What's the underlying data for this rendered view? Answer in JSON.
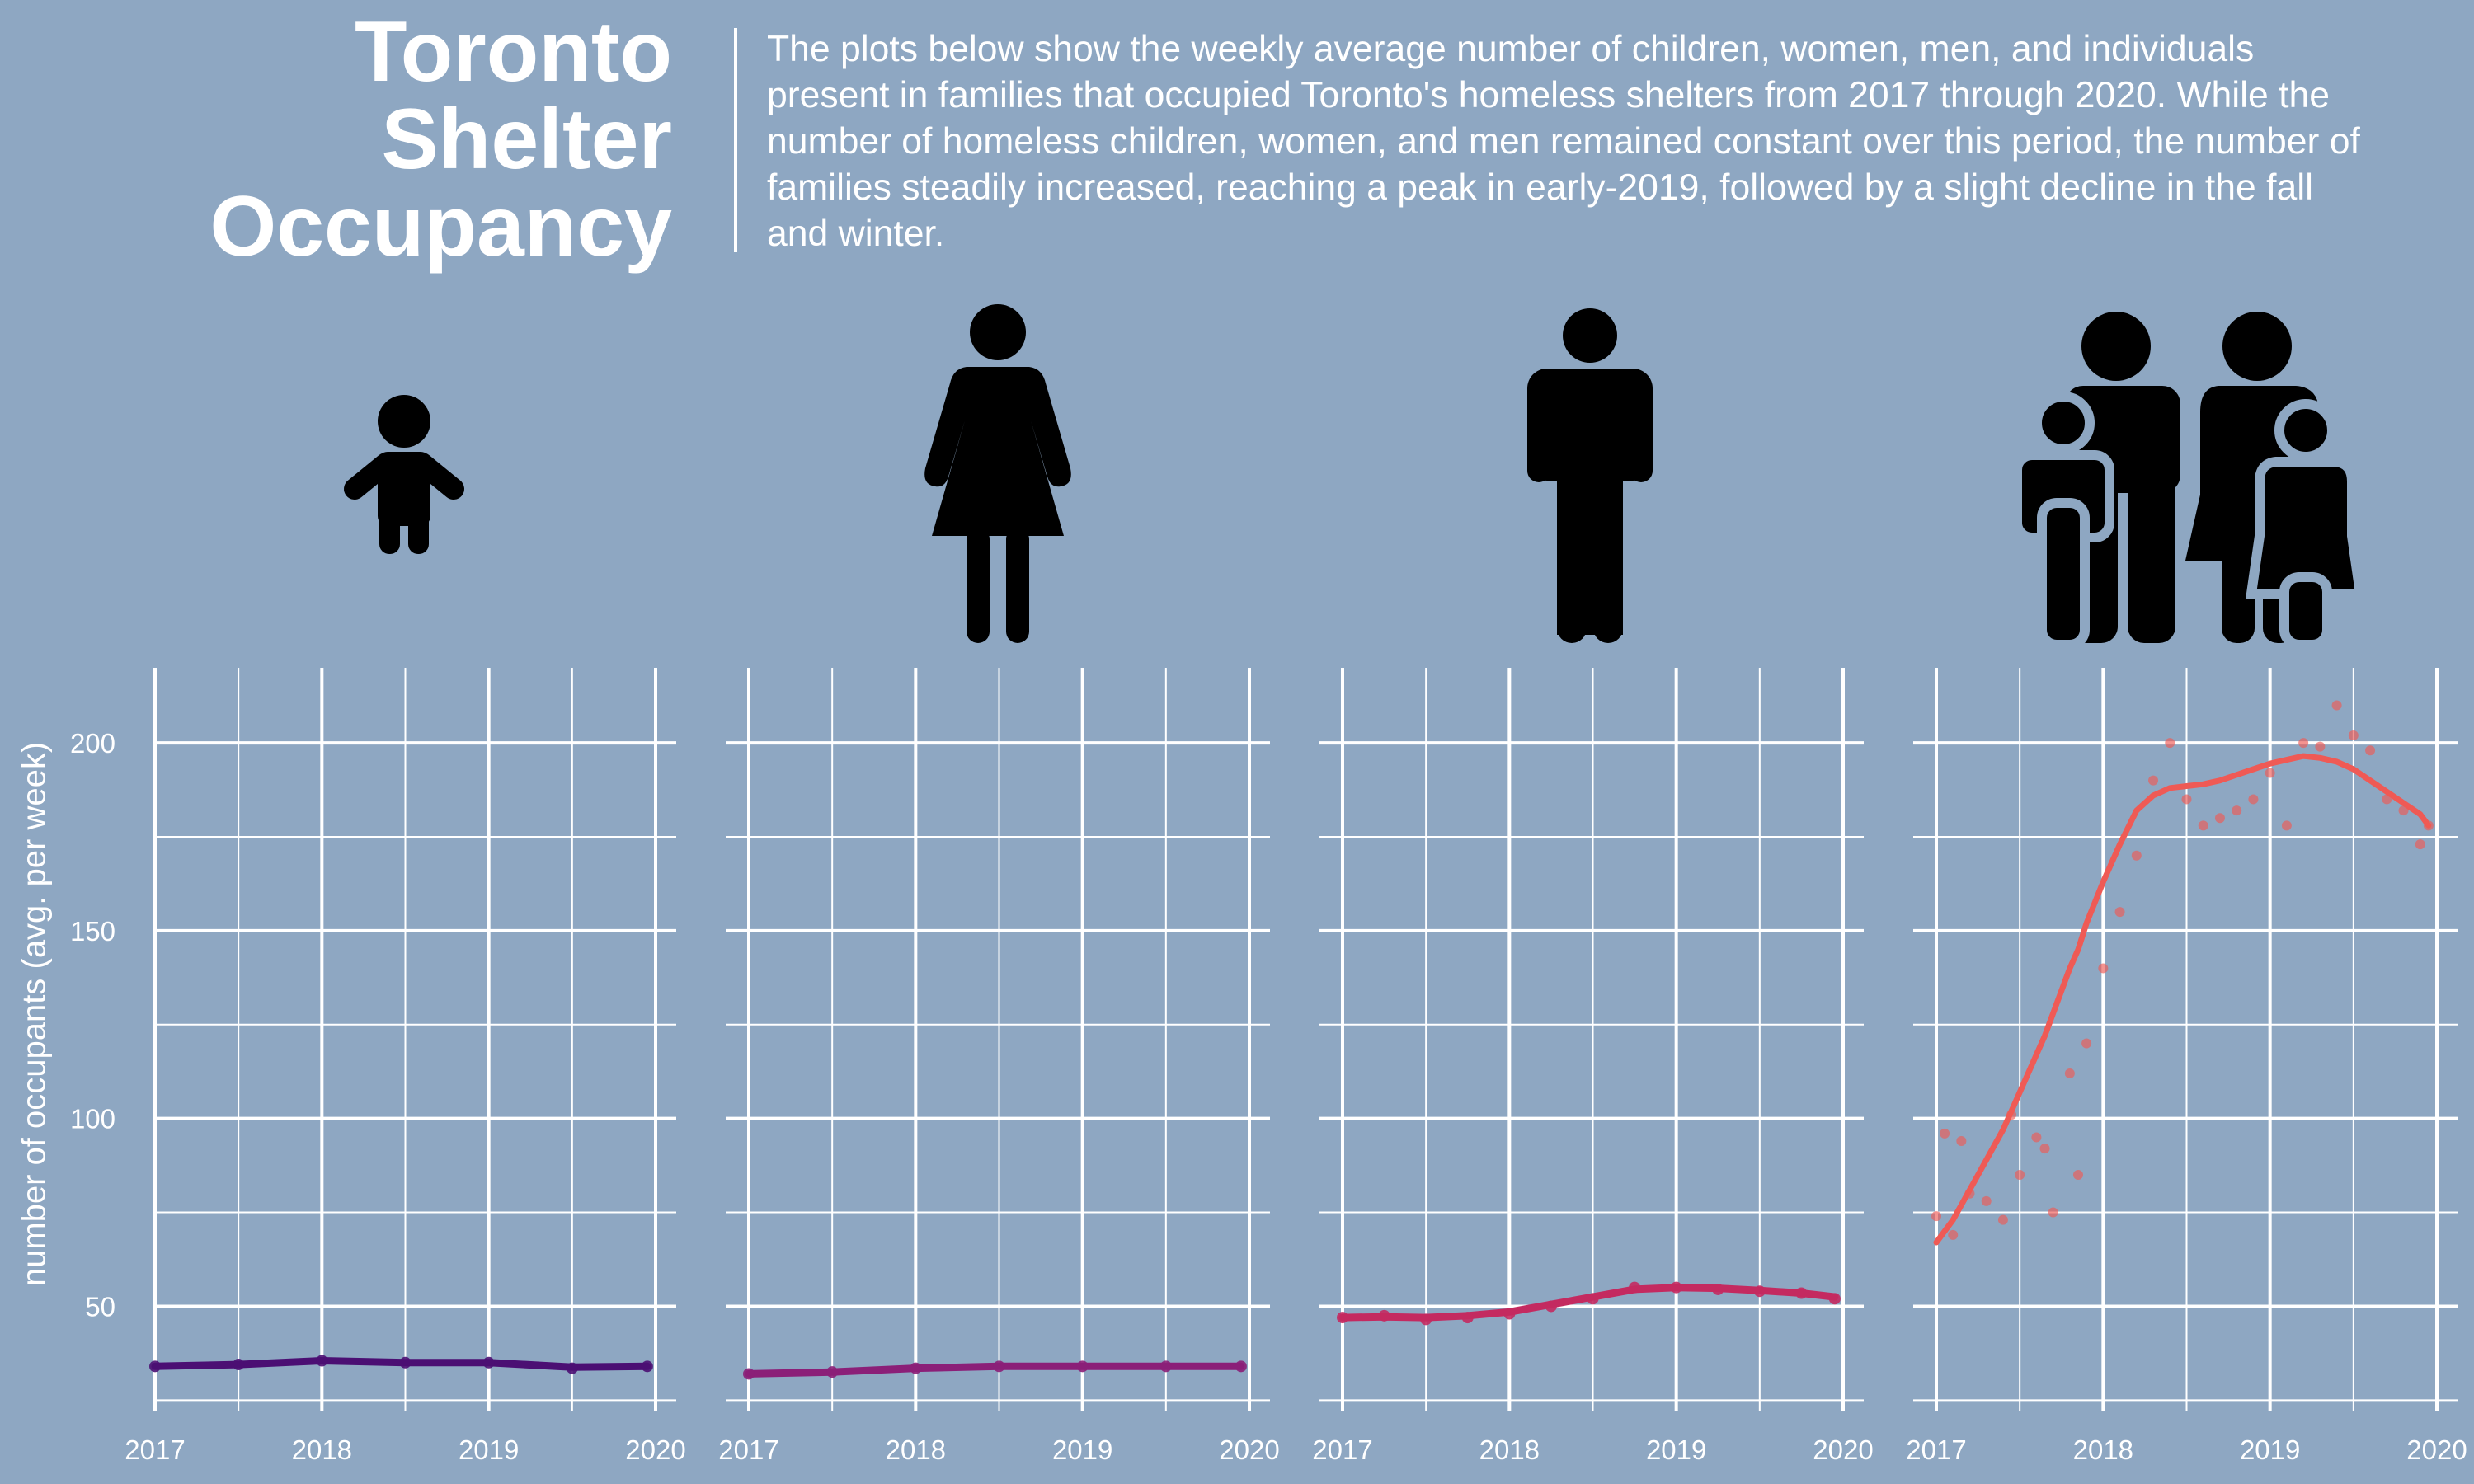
{
  "title_lines": [
    "Toronto",
    "Shelter",
    "Occupancy"
  ],
  "subtitle": "The plots below show the weekly average number of children, women, men, and individuals present in families that occupied Toronto's homeless shelters from 2017 through 2020. While the number of homeless children, women, and men remained constant over this period, the number of families steadily increased, reaching a peak in early-2019, followed by a slight decline in the fall and winter.",
  "icons": [
    "child-icon",
    "woman-icon",
    "man-icon",
    "family-icon"
  ],
  "colors": {
    "background": "#8EA7C2",
    "grid": "#ffffff",
    "children": "#4B0F73",
    "women": "#8B1F78",
    "men": "#C42A60",
    "families": "#EF5A55"
  },
  "chart_data": [
    {
      "type": "scatter",
      "group": "children",
      "x": [
        2017.0,
        2017.5,
        2018.0,
        2018.5,
        2019.0,
        2019.5,
        2019.95
      ],
      "y": [
        34,
        34.5,
        35.5,
        35,
        35,
        33.5,
        34
      ],
      "smooth": [
        34,
        34.5,
        35.5,
        35,
        35,
        33.8,
        34
      ],
      "xlim": [
        2017,
        2020
      ],
      "ylim": [
        22,
        220
      ],
      "xticks": [
        "2017",
        "2018",
        "2019",
        "2020"
      ],
      "yticks": [
        "50",
        "100",
        "150",
        "200"
      ],
      "ylabel": "number of occupants (avg. per week)",
      "grid": true
    },
    {
      "type": "scatter",
      "group": "women",
      "x": [
        2017.0,
        2017.5,
        2018.0,
        2018.5,
        2019.0,
        2019.5,
        2019.95
      ],
      "y": [
        32,
        32.5,
        33.5,
        34,
        34,
        34,
        34
      ],
      "smooth": [
        32,
        32.5,
        33.5,
        34,
        34,
        34,
        34
      ],
      "xlim": [
        2017,
        2020
      ],
      "ylim": [
        22,
        220
      ],
      "xticks": [
        "2017",
        "2018",
        "2019",
        "2020"
      ],
      "grid": true
    },
    {
      "type": "scatter",
      "group": "men",
      "x": [
        2017.0,
        2017.25,
        2017.5,
        2017.75,
        2018.0,
        2018.25,
        2018.5,
        2018.75,
        2019.0,
        2019.25,
        2019.5,
        2019.75,
        2019.95
      ],
      "y": [
        47,
        47.5,
        46.5,
        47,
        48,
        50,
        52,
        55,
        55,
        54.5,
        54,
        53.5,
        52
      ],
      "smooth": [
        47,
        47.2,
        47,
        47.5,
        48.5,
        50.5,
        52.5,
        54.5,
        55,
        54.8,
        54.2,
        53.5,
        52.5
      ],
      "xlim": [
        2017,
        2020
      ],
      "ylim": [
        22,
        220
      ],
      "xticks": [
        "2017",
        "2018",
        "2019",
        "2020"
      ],
      "grid": true
    },
    {
      "type": "scatter",
      "group": "families",
      "x": [
        2017.0,
        2017.05,
        2017.1,
        2017.15,
        2017.2,
        2017.3,
        2017.4,
        2017.45,
        2017.5,
        2017.6,
        2017.65,
        2017.7,
        2017.8,
        2017.85,
        2017.9,
        2018.0,
        2018.1,
        2018.2,
        2018.3,
        2018.4,
        2018.5,
        2018.6,
        2018.7,
        2018.8,
        2018.9,
        2019.0,
        2019.1,
        2019.2,
        2019.3,
        2019.4,
        2019.5,
        2019.6,
        2019.7,
        2019.8,
        2019.9,
        2019.95
      ],
      "y": [
        74,
        96,
        69,
        94,
        80,
        78,
        73,
        101,
        85,
        95,
        92,
        75,
        112,
        85,
        120,
        140,
        155,
        170,
        190,
        200,
        185,
        178,
        180,
        182,
        185,
        192,
        178,
        200,
        199,
        210,
        202,
        198,
        185,
        182,
        173,
        178
      ],
      "smooth": [
        67,
        70,
        73,
        77,
        81,
        89,
        97,
        102,
        107,
        117,
        122,
        128,
        140,
        145,
        152,
        163,
        173,
        182,
        186,
        188,
        188.5,
        189,
        190,
        191.5,
        193,
        194.5,
        195.5,
        196.5,
        196,
        195,
        193,
        190,
        187,
        184,
        181,
        178
      ],
      "xlim": [
        2017,
        2020
      ],
      "ylim": [
        22,
        220
      ],
      "xticks": [
        "2017",
        "2018",
        "2019",
        "2020"
      ],
      "grid": true
    }
  ]
}
